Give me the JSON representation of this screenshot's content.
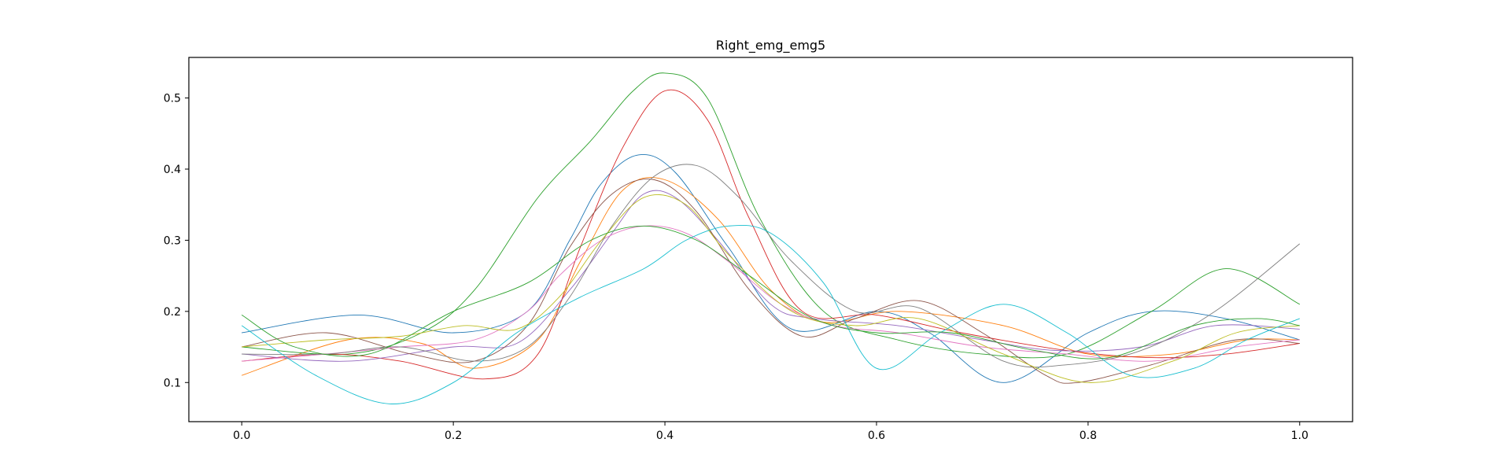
{
  "chart_data": {
    "type": "line",
    "title": "Right_emg_emg5",
    "xlabel": "",
    "ylabel": "",
    "xlim": [
      -0.05,
      1.05
    ],
    "ylim": [
      0.045,
      0.557
    ],
    "x_ticks": [
      0.0,
      0.2,
      0.4,
      0.6,
      0.8,
      1.0
    ],
    "x_tick_labels": [
      "0.0",
      "0.2",
      "0.4",
      "0.6",
      "0.8",
      "1.0"
    ],
    "y_ticks": [
      0.1,
      0.2,
      0.3,
      0.4,
      0.5
    ],
    "y_tick_labels": [
      "0.1",
      "0.2",
      "0.3",
      "0.4",
      "0.5"
    ],
    "grid": false,
    "legend": "none",
    "series": [
      {
        "color": "#1f77b4",
        "x": [
          0.0,
          0.11,
          0.2,
          0.27,
          0.31,
          0.34,
          0.375,
          0.41,
          0.46,
          0.52,
          0.6,
          0.65,
          0.72,
          0.8,
          0.86,
          0.93,
          1.0
        ],
        "values": [
          0.17,
          0.195,
          0.17,
          0.2,
          0.3,
          0.38,
          0.42,
          0.395,
          0.29,
          0.175,
          0.2,
          0.17,
          0.1,
          0.17,
          0.2,
          0.19,
          0.16
        ]
      },
      {
        "color": "#ff7f0e",
        "x": [
          0.0,
          0.1,
          0.17,
          0.22,
          0.28,
          0.32,
          0.36,
          0.4,
          0.45,
          0.5,
          0.55,
          0.62,
          0.72,
          0.8,
          0.88,
          0.95,
          1.0
        ],
        "values": [
          0.11,
          0.16,
          0.155,
          0.12,
          0.16,
          0.27,
          0.37,
          0.385,
          0.33,
          0.23,
          0.185,
          0.2,
          0.18,
          0.14,
          0.14,
          0.16,
          0.16
        ]
      },
      {
        "color": "#2ca02c",
        "x": [
          0.0,
          0.1,
          0.17,
          0.22,
          0.28,
          0.33,
          0.37,
          0.4,
          0.44,
          0.49,
          0.55,
          0.62,
          0.7,
          0.78,
          0.86,
          0.93,
          1.0
        ],
        "values": [
          0.15,
          0.14,
          0.17,
          0.23,
          0.36,
          0.44,
          0.51,
          0.535,
          0.5,
          0.33,
          0.2,
          0.16,
          0.14,
          0.14,
          0.2,
          0.26,
          0.21
        ]
      },
      {
        "color": "#d62728",
        "x": [
          0.0,
          0.08,
          0.15,
          0.23,
          0.28,
          0.32,
          0.36,
          0.4,
          0.44,
          0.48,
          0.53,
          0.6,
          0.68,
          0.78,
          0.86,
          0.93,
          1.0
        ],
        "values": [
          0.13,
          0.14,
          0.13,
          0.105,
          0.14,
          0.29,
          0.43,
          0.51,
          0.47,
          0.33,
          0.2,
          0.195,
          0.17,
          0.145,
          0.135,
          0.14,
          0.155
        ]
      },
      {
        "color": "#9467bd",
        "x": [
          0.0,
          0.1,
          0.2,
          0.26,
          0.31,
          0.35,
          0.38,
          0.41,
          0.45,
          0.5,
          0.54,
          0.62,
          0.7,
          0.77,
          0.85,
          0.92,
          1.0
        ],
        "values": [
          0.14,
          0.13,
          0.15,
          0.155,
          0.23,
          0.31,
          0.365,
          0.36,
          0.3,
          0.21,
          0.19,
          0.18,
          0.16,
          0.145,
          0.15,
          0.18,
          0.175
        ]
      },
      {
        "color": "#8c564b",
        "x": [
          0.0,
          0.08,
          0.16,
          0.22,
          0.27,
          0.31,
          0.35,
          0.39,
          0.43,
          0.48,
          0.53,
          0.58,
          0.64,
          0.7,
          0.76,
          0.79,
          0.86,
          0.94,
          1.0
        ],
        "values": [
          0.15,
          0.17,
          0.14,
          0.13,
          0.18,
          0.29,
          0.365,
          0.385,
          0.34,
          0.23,
          0.165,
          0.19,
          0.215,
          0.17,
          0.11,
          0.1,
          0.125,
          0.16,
          0.155
        ]
      },
      {
        "color": "#e377c2",
        "x": [
          0.0,
          0.08,
          0.15,
          0.22,
          0.27,
          0.3,
          0.34,
          0.38,
          0.42,
          0.46,
          0.51,
          0.56,
          0.62,
          0.7,
          0.78,
          0.86,
          0.94,
          1.0
        ],
        "values": [
          0.13,
          0.14,
          0.15,
          0.16,
          0.2,
          0.25,
          0.3,
          0.32,
          0.31,
          0.27,
          0.21,
          0.18,
          0.17,
          0.15,
          0.14,
          0.13,
          0.15,
          0.16
        ]
      },
      {
        "color": "#7f7f7f",
        "x": [
          0.0,
          0.08,
          0.15,
          0.22,
          0.27,
          0.31,
          0.35,
          0.39,
          0.43,
          0.47,
          0.52,
          0.58,
          0.64,
          0.72,
          0.78,
          0.85,
          0.92,
          1.0
        ],
        "values": [
          0.14,
          0.14,
          0.15,
          0.13,
          0.15,
          0.22,
          0.32,
          0.39,
          0.405,
          0.36,
          0.27,
          0.2,
          0.205,
          0.13,
          0.125,
          0.145,
          0.2,
          0.295
        ]
      },
      {
        "color": "#bcbd22",
        "x": [
          0.0,
          0.08,
          0.15,
          0.21,
          0.26,
          0.3,
          0.34,
          0.38,
          0.42,
          0.46,
          0.52,
          0.58,
          0.64,
          0.72,
          0.8,
          0.88,
          0.94,
          1.0
        ],
        "values": [
          0.15,
          0.16,
          0.165,
          0.18,
          0.175,
          0.22,
          0.3,
          0.36,
          0.35,
          0.28,
          0.2,
          0.18,
          0.19,
          0.14,
          0.1,
          0.13,
          0.17,
          0.18
        ]
      },
      {
        "color": "#17becf",
        "x": [
          0.0,
          0.07,
          0.14,
          0.2,
          0.26,
          0.32,
          0.38,
          0.42,
          0.46,
          0.5,
          0.55,
          0.6,
          0.66,
          0.72,
          0.78,
          0.84,
          0.9,
          0.95,
          1.0
        ],
        "values": [
          0.18,
          0.11,
          0.07,
          0.1,
          0.17,
          0.22,
          0.26,
          0.3,
          0.32,
          0.31,
          0.24,
          0.12,
          0.17,
          0.21,
          0.17,
          0.11,
          0.12,
          0.16,
          0.19
        ]
      },
      {
        "color": "#2ca02c",
        "x": [
          0.0,
          0.05,
          0.12,
          0.2,
          0.27,
          0.33,
          0.38,
          0.43,
          0.48,
          0.54,
          0.6,
          0.67,
          0.75,
          0.82,
          0.9,
          0.96,
          1.0
        ],
        "values": [
          0.195,
          0.15,
          0.14,
          0.2,
          0.24,
          0.3,
          0.32,
          0.3,
          0.25,
          0.19,
          0.17,
          0.17,
          0.145,
          0.135,
          0.18,
          0.19,
          0.18
        ]
      }
    ]
  }
}
